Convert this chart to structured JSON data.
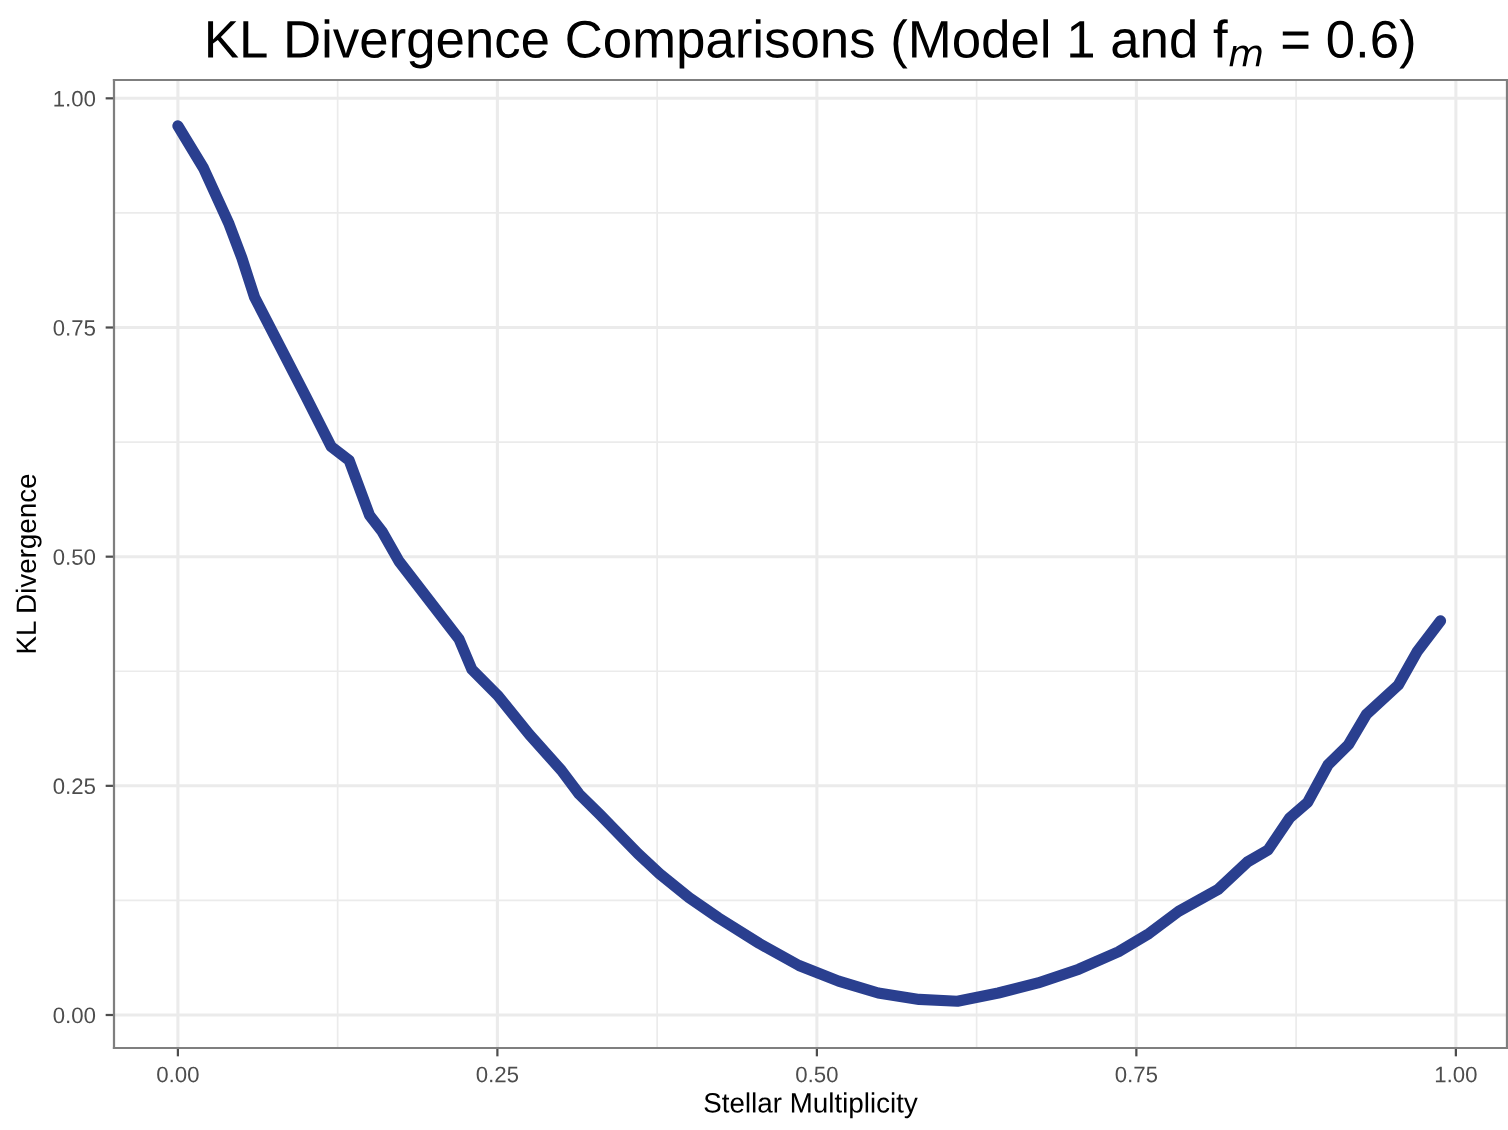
{
  "chart_data": {
    "type": "line",
    "title": "KL Divergence Comparisons (Model 1 and f$_{m}$ = 0.6)",
    "xlabel": "Stellar Multiplicity",
    "ylabel": "KL Divergence",
    "x": [
      0,
      0.02,
      0.04,
      0.05,
      0.06,
      0.08,
      0.1,
      0.12,
      0.134,
      0.15,
      0.16,
      0.173,
      0.22,
      0.23,
      0.25,
      0.275,
      0.3,
      0.314,
      0.33,
      0.36,
      0.377,
      0.4,
      0.423,
      0.455,
      0.486,
      0.517,
      0.548,
      0.58,
      0.61,
      0.642,
      0.673,
      0.705,
      0.736,
      0.76,
      0.783,
      0.814,
      0.837,
      0.853,
      0.87,
      0.884,
      0.9,
      0.916,
      0.93,
      0.955,
      0.97,
      0.988
    ],
    "series": [
      {
        "color": "#2a3f8f",
        "values": [
          0.97,
          0.924,
          0.863,
          0.826,
          0.783,
          0.729,
          0.675,
          0.62,
          0.605,
          0.545,
          0.527,
          0.495,
          0.41,
          0.377,
          0.349,
          0.306,
          0.267,
          0.241,
          0.219,
          0.176,
          0.154,
          0.128,
          0.106,
          0.078,
          0.054,
          0.037,
          0.024,
          0.017,
          0.015,
          0.024,
          0.035,
          0.05,
          0.069,
          0.089,
          0.113,
          0.137,
          0.167,
          0.18,
          0.215,
          0.232,
          0.273,
          0.295,
          0.328,
          0.36,
          0.397,
          0.43
        ]
      }
    ],
    "xlim": [
      -0.05,
      1.04
    ],
    "ylim": [
      -0.036,
      1.02
    ],
    "xticks": [
      {
        "value": 0,
        "label": "0.00"
      },
      {
        "value": 0.25,
        "label": "0.25"
      },
      {
        "value": 0.5,
        "label": "0.50"
      },
      {
        "value": 0.75,
        "label": "0.75"
      },
      {
        "value": 1,
        "label": "1.00"
      }
    ],
    "yticks": [
      {
        "value": 0,
        "label": "0.00"
      },
      {
        "value": 0.25,
        "label": "0.25"
      },
      {
        "value": 0.5,
        "label": "0.50"
      },
      {
        "value": 0.75,
        "label": "0.75"
      },
      {
        "value": 1,
        "label": "1.00"
      }
    ],
    "grid": true,
    "line_style": "solid",
    "marker": "none",
    "legend": false
  }
}
